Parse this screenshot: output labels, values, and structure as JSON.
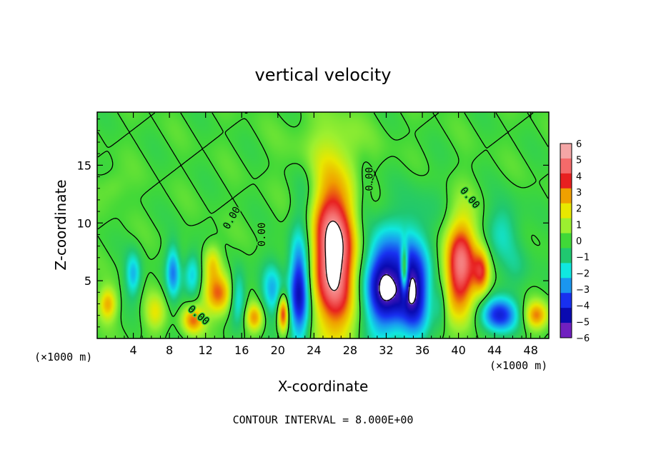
{
  "chart_data": {
    "type": "heatmap",
    "title": "vertical velocity",
    "xlabel": "X-coordinate",
    "ylabel": "Z-coordinate",
    "x_unit_left": "(×1000 m)",
    "x_unit_right": "(×1000 m)",
    "xlim": [
      0,
      50
    ],
    "ylim": [
      0,
      19.6
    ],
    "x_ticks": [
      4,
      8,
      12,
      16,
      20,
      24,
      28,
      32,
      36,
      40,
      44,
      48
    ],
    "y_ticks": [
      5,
      10,
      15
    ],
    "footer": "CONTOUR INTERVAL = 8.000E+00",
    "colorbar": {
      "labels": [
        "6",
        "5",
        "4",
        "3",
        "2",
        "1",
        "0",
        "−1",
        "−2",
        "−3",
        "−4",
        "−5",
        "−6"
      ],
      "colors": [
        "#f4a6a6",
        "#f46a6a",
        "#e82020",
        "#f0a000",
        "#e8e800",
        "#9cf030",
        "#40d838",
        "#20c870",
        "#10e8e0",
        "#1a96f0",
        "#1830f0",
        "#0a0ab0",
        "#7020c0"
      ]
    },
    "contour_labels": [
      {
        "text": "0.00",
        "x": 15.2,
        "y": 10.3,
        "rotate": -60
      },
      {
        "text": "0.00",
        "x": 18.6,
        "y": 9.0,
        "rotate": -90
      },
      {
        "text": "0.00",
        "x": 30.5,
        "y": 13.8,
        "rotate": -90
      },
      {
        "text": "0.00",
        "x": 41.0,
        "y": 12.0,
        "rotate": 50
      },
      {
        "text": "0.00",
        "x": 11.0,
        "y": 1.8,
        "rotate": 40
      }
    ],
    "features": [
      {
        "x": 26.2,
        "z": 7.2,
        "rx": 2.6,
        "rz": 6.8,
        "amp": 6.5
      },
      {
        "x": 22.4,
        "z": 4.2,
        "rx": 1.2,
        "rz": 4.8,
        "amp": -5.5
      },
      {
        "x": 20.6,
        "z": 2.2,
        "rx": 0.6,
        "rz": 1.6,
        "amp": 4.5
      },
      {
        "x": 31.8,
        "z": 4.6,
        "rx": 2.3,
        "rz": 4.4,
        "amp": -6.0
      },
      {
        "x": 35.2,
        "z": 4.2,
        "rx": 1.8,
        "rz": 4.0,
        "amp": -5.0
      },
      {
        "x": 34.0,
        "z": 6.0,
        "rx": 0.4,
        "rz": 2.0,
        "amp": 4.5
      },
      {
        "x": 40.2,
        "z": 6.2,
        "rx": 1.8,
        "rz": 4.4,
        "amp": 5.5
      },
      {
        "x": 42.6,
        "z": 5.8,
        "rx": 0.9,
        "rz": 2.0,
        "amp": 3.0
      },
      {
        "x": 44.4,
        "z": 2.0,
        "rx": 2.2,
        "rz": 1.6,
        "amp": -4.2
      },
      {
        "x": 48.6,
        "z": 2.0,
        "rx": 1.3,
        "rz": 1.2,
        "amp": 3.2
      },
      {
        "x": 38.0,
        "z": 3.0,
        "rx": 0.8,
        "rz": 2.0,
        "amp": -1.5
      },
      {
        "x": 26.0,
        "z": 17.0,
        "rx": 5.0,
        "rz": 2.8,
        "amp": 0.6
      },
      {
        "x": 4.0,
        "z": 5.5,
        "rx": 0.9,
        "rz": 2.0,
        "amp": -2.6
      },
      {
        "x": 1.2,
        "z": 3.0,
        "rx": 1.0,
        "rz": 1.4,
        "amp": 2.8
      },
      {
        "x": 8.4,
        "z": 5.8,
        "rx": 0.8,
        "rz": 2.4,
        "amp": -3.0
      },
      {
        "x": 10.6,
        "z": 5.6,
        "rx": 1.0,
        "rz": 2.0,
        "amp": -2.5
      },
      {
        "x": 10.6,
        "z": 1.6,
        "rx": 1.2,
        "rz": 1.2,
        "amp": 3.2
      },
      {
        "x": 13.4,
        "z": 3.8,
        "rx": 1.6,
        "rz": 1.8,
        "amp": 3.6
      },
      {
        "x": 12.8,
        "z": 6.6,
        "rx": 1.0,
        "rz": 1.6,
        "amp": 2.2
      },
      {
        "x": 15.6,
        "z": 3.6,
        "rx": 0.9,
        "rz": 2.4,
        "amp": -2.6
      },
      {
        "x": 17.4,
        "z": 1.8,
        "rx": 1.0,
        "rz": 1.2,
        "amp": 3.0
      },
      {
        "x": 19.4,
        "z": 4.2,
        "rx": 1.2,
        "rz": 2.6,
        "amp": -2.4
      },
      {
        "x": 6.4,
        "z": 2.2,
        "rx": 1.2,
        "rz": 1.6,
        "amp": 1.8
      },
      {
        "x": 36.0,
        "z": 10.2,
        "rx": 3.2,
        "rz": 3.8,
        "amp": -0.8
      },
      {
        "x": 45.0,
        "z": 9.5,
        "rx": 2.0,
        "rz": 2.6,
        "amp": -1.6
      },
      {
        "x": 46.5,
        "z": 6.0,
        "rx": 1.6,
        "rz": 2.2,
        "amp": -1.0
      },
      {
        "x": 1.8,
        "z": 13.2,
        "rx": 1.6,
        "rz": 1.4,
        "amp": 0.7
      },
      {
        "x": 23.0,
        "z": 12.0,
        "rx": 1.2,
        "rz": 3.0,
        "amp": -0.8
      },
      {
        "x": 29.5,
        "z": 12.5,
        "rx": 1.0,
        "rz": 3.5,
        "amp": -0.9
      }
    ]
  }
}
